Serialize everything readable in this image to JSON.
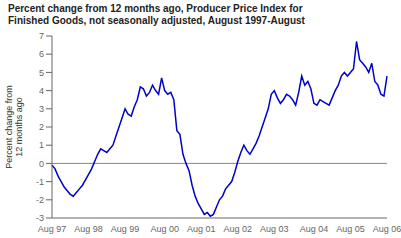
{
  "chart_data": {
    "type": "line",
    "title": "Percent change from 12 months ago, Producer Price Index for\nFinished Goods, not seasonally adjusted, August 1997-August",
    "ylabel": "Percent change from\n12 months ago",
    "color": "#0000CC",
    "grid": false,
    "ylim": [
      -3,
      7
    ],
    "yticks": [
      -3,
      -2,
      -1,
      0,
      1,
      2,
      3,
      4,
      5,
      6,
      7
    ],
    "categories": [
      "Aug 97",
      null,
      null,
      null,
      null,
      null,
      null,
      null,
      null,
      null,
      null,
      null,
      "Aug 98",
      null,
      null,
      null,
      null,
      null,
      null,
      null,
      null,
      null,
      null,
      null,
      "Aug 99",
      null,
      null,
      null,
      null,
      null,
      null,
      null,
      null,
      null,
      null,
      null,
      null,
      "Aug 00",
      null,
      null,
      null,
      null,
      null,
      null,
      null,
      null,
      null,
      null,
      null,
      "Aug 01",
      null,
      null,
      null,
      null,
      null,
      null,
      null,
      null,
      null,
      null,
      null,
      "Aug 02",
      null,
      null,
      null,
      null,
      null,
      null,
      null,
      null,
      null,
      null,
      null,
      "Aug 03",
      null,
      null,
      null,
      null,
      null,
      null,
      null,
      null,
      null,
      null,
      null,
      null,
      "Aug 04",
      null,
      null,
      null,
      null,
      null,
      null,
      null,
      null,
      null,
      null,
      null,
      "Aug 05",
      null,
      null,
      null,
      null,
      null,
      null,
      null,
      null,
      null,
      null,
      null,
      "Aug 06"
    ],
    "values": [
      -0.1,
      -0.3,
      -0.7,
      -1.0,
      -1.3,
      -1.5,
      -1.7,
      -1.8,
      -1.6,
      -1.4,
      -1.2,
      -0.9,
      -0.6,
      -0.3,
      0.1,
      0.5,
      0.8,
      0.7,
      0.6,
      0.8,
      1.0,
      1.5,
      2.0,
      2.5,
      3.0,
      2.7,
      2.6,
      3.1,
      3.5,
      4.2,
      4.1,
      3.7,
      3.9,
      4.3,
      4.0,
      3.8,
      4.7,
      4.0,
      3.8,
      3.9,
      3.5,
      1.8,
      1.6,
      0.5,
      0.0,
      -0.4,
      -1.2,
      -1.8,
      -2.2,
      -2.5,
      -2.8,
      -2.7,
      -2.9,
      -2.8,
      -2.4,
      -2.0,
      -1.8,
      -1.4,
      -1.2,
      -1.0,
      -0.5,
      0.1,
      0.6,
      1.0,
      0.7,
      0.5,
      0.8,
      1.1,
      1.5,
      2.0,
      2.5,
      3.0,
      3.8,
      4.0,
      3.6,
      3.3,
      3.5,
      3.8,
      3.7,
      3.5,
      3.2,
      3.9,
      4.8,
      4.3,
      4.5,
      4.1,
      3.3,
      3.2,
      3.5,
      3.4,
      3.3,
      3.2,
      3.6,
      4.0,
      4.3,
      4.8,
      5.0,
      4.8,
      5.0,
      5.2,
      6.7,
      5.7,
      5.5,
      5.3,
      5.0,
      5.5,
      4.5,
      4.3,
      3.8,
      3.7,
      4.8
    ]
  }
}
